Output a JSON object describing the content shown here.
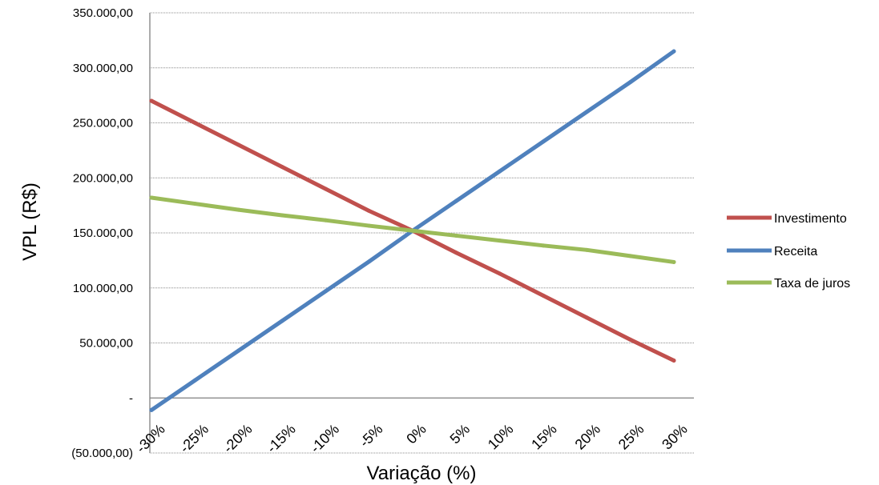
{
  "chart_data": {
    "type": "line",
    "x": [
      -30,
      -25,
      -20,
      -15,
      -10,
      -5,
      0,
      5,
      10,
      15,
      20,
      25,
      30
    ],
    "categories": [
      "-30%",
      "-25%",
      "-20%",
      "-15%",
      "-10%",
      "-5%",
      "0%",
      "5%",
      "10%",
      "15%",
      "20%",
      "25%",
      "30%"
    ],
    "series": [
      {
        "name": "Investimento",
        "color": "#c0504d",
        "values": [
          270000,
          250000,
          230000,
          210000,
          190000,
          170000,
          152000,
          132000,
          113000,
          93000,
          73000,
          53000,
          34000
        ]
      },
      {
        "name": "Receita",
        "color": "#4f81bd",
        "values": [
          -11000,
          16000,
          43000,
          70000,
          97000,
          124000,
          152000,
          179000,
          206000,
          233000,
          260000,
          287000,
          315000
        ]
      },
      {
        "name": "Taxa de juros",
        "color": "#9bbb59",
        "values": [
          182000,
          176500,
          171000,
          166000,
          161500,
          156500,
          152000,
          147500,
          143000,
          138500,
          134500,
          129000,
          123500
        ]
      }
    ],
    "ylim": [
      -50000,
      350000
    ],
    "yticks": [
      -50000,
      0,
      50000,
      100000,
      150000,
      200000,
      250000,
      300000,
      350000
    ],
    "ytick_labels": [
      "(50.000,00)",
      "-",
      "50.000,00",
      "100.000,00",
      "150.000,00",
      "200.000,00",
      "250.000,00",
      "300.000,00",
      "350.000,00"
    ],
    "xlabel": "Variação (%)",
    "ylabel": "VPL (R$)",
    "title": "",
    "grid": true,
    "legend": "right"
  }
}
